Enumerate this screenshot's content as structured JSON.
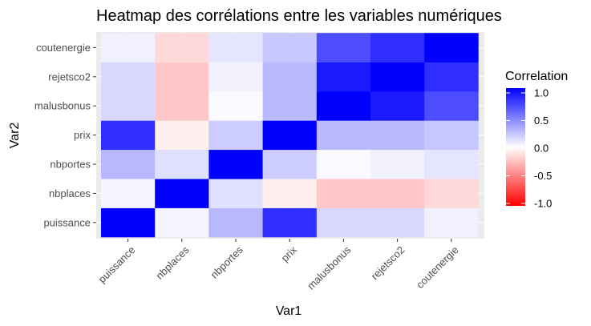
{
  "chart_data": {
    "type": "heatmap",
    "title": "Heatmap des corrélations entre les variables numériques",
    "xlabel": "Var1",
    "ylabel": "Var2",
    "x": [
      "puissance",
      "nbplaces",
      "nbportes",
      "prix",
      "malusbonus",
      "rejetsco2",
      "coutenergie"
    ],
    "y": [
      "puissance",
      "nbplaces",
      "nbportes",
      "prix",
      "malusbonus",
      "rejetsco2",
      "coutenergie"
    ],
    "values": [
      [
        1.0,
        0.04,
        0.28,
        0.82,
        0.15,
        0.15,
        0.06
      ],
      [
        0.04,
        1.0,
        0.12,
        -0.06,
        -0.22,
        -0.22,
        -0.15
      ],
      [
        0.28,
        0.12,
        1.0,
        0.2,
        0.02,
        0.05,
        0.1
      ],
      [
        0.82,
        -0.06,
        0.2,
        1.0,
        0.27,
        0.27,
        0.22
      ],
      [
        0.15,
        -0.22,
        0.02,
        0.27,
        1.0,
        0.9,
        0.7
      ],
      [
        0.15,
        -0.22,
        0.05,
        0.27,
        0.9,
        1.0,
        0.82
      ],
      [
        0.06,
        -0.15,
        0.1,
        0.22,
        0.7,
        0.82,
        1.0
      ]
    ],
    "color_range": [
      -1,
      1
    ],
    "colors": {
      "low": "#FF0000",
      "mid": "#FFFFFF",
      "high": "#0000FF"
    },
    "grid": true,
    "legend": {
      "title": "Correlation",
      "placement": "right",
      "ticks": [
        "1.0",
        "0.5",
        "0.0",
        "-0.5",
        "-1.0"
      ]
    }
  }
}
